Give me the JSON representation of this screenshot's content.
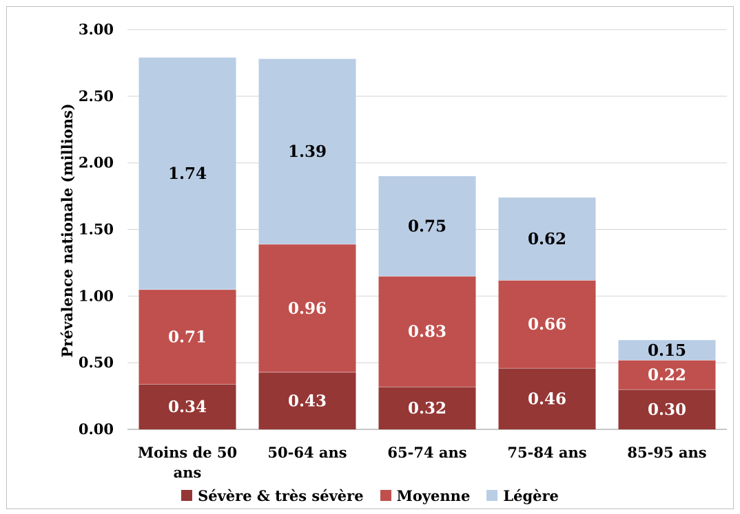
{
  "chart_data": {
    "type": "bar",
    "stacked": true,
    "title": "",
    "xlabel": "",
    "ylabel": "Prévalence nationale (millions)",
    "ylim": [
      0,
      3.0
    ],
    "yticks": [
      "0.00",
      "0.50",
      "1.00",
      "1.50",
      "2.00",
      "2.50",
      "3.00"
    ],
    "ytick_values": [
      0,
      0.5,
      1.0,
      1.5,
      2.0,
      2.5,
      3.0
    ],
    "grid": true,
    "legend_position": "bottom",
    "categories": [
      "Moins de 50 ans",
      "50-64 ans",
      "65-74 ans",
      "75-84 ans",
      "85-95 ans"
    ],
    "series": [
      {
        "name": "Sévère & très sévère",
        "color": "#953735",
        "label_color": "#ffffff",
        "values": [
          0.34,
          0.43,
          0.32,
          0.46,
          0.3
        ],
        "labels": [
          "0.34",
          "0.43",
          "0.32",
          "0.46",
          "0.30"
        ]
      },
      {
        "name": "Moyenne",
        "color": "#c0504d",
        "label_color": "#ffffff",
        "values": [
          0.71,
          0.96,
          0.83,
          0.66,
          0.22
        ],
        "labels": [
          "0.71",
          "0.96",
          "0.83",
          "0.66",
          "0.22"
        ]
      },
      {
        "name": "Légère",
        "color": "#b9cde5",
        "label_color": "#000000",
        "values": [
          1.74,
          1.39,
          0.75,
          0.62,
          0.15
        ],
        "labels": [
          "1.74",
          "1.39",
          "0.75",
          "0.62",
          "0.15"
        ]
      }
    ]
  }
}
